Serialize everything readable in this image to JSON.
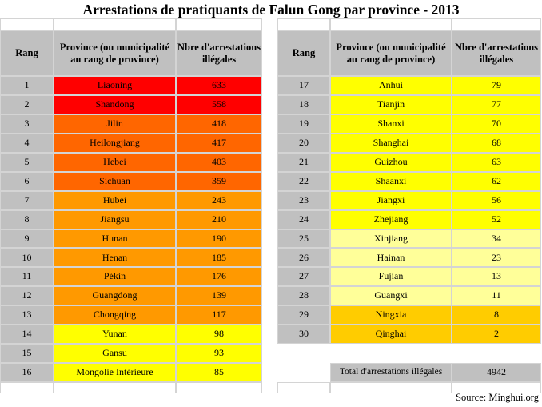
{
  "title": "Arrestations de pratiquants de Falun Gong par province - 2013",
  "headers": {
    "rank": "Rang",
    "province": "Province (ou municipalité au rang de province)",
    "count": "Nbre d'arrestations illégales"
  },
  "left_rows": [
    {
      "rank": 1,
      "province": "Liaoning",
      "count": 633,
      "color": "#ff0000"
    },
    {
      "rank": 2,
      "province": "Shandong",
      "count": 558,
      "color": "#ff0000"
    },
    {
      "rank": 3,
      "province": "Jilin",
      "count": 418,
      "color": "#ff6600"
    },
    {
      "rank": 4,
      "province": "Heilongjiang",
      "count": 417,
      "color": "#ff6600"
    },
    {
      "rank": 5,
      "province": "Hebei",
      "count": 403,
      "color": "#ff6600"
    },
    {
      "rank": 6,
      "province": "Sichuan",
      "count": 359,
      "color": "#ff6600"
    },
    {
      "rank": 7,
      "province": "Hubei",
      "count": 243,
      "color": "#ff9900"
    },
    {
      "rank": 8,
      "province": "Jiangsu",
      "count": 210,
      "color": "#ff9900"
    },
    {
      "rank": 9,
      "province": "Hunan",
      "count": 190,
      "color": "#ff9900"
    },
    {
      "rank": 10,
      "province": "Henan",
      "count": 185,
      "color": "#ff9900"
    },
    {
      "rank": 11,
      "province": "Pékin",
      "count": 176,
      "color": "#ff9900"
    },
    {
      "rank": 12,
      "province": "Guangdong",
      "count": 139,
      "color": "#ff9900"
    },
    {
      "rank": 13,
      "province": "Chongqing",
      "count": 117,
      "color": "#ff9900"
    },
    {
      "rank": 14,
      "province": "Yunan",
      "count": 98,
      "color": "#ffff00"
    },
    {
      "rank": 15,
      "province": "Gansu",
      "count": 93,
      "color": "#ffff00"
    },
    {
      "rank": 16,
      "province": "Mongolie Intérieure",
      "count": 85,
      "color": "#ffff00"
    }
  ],
  "right_rows": [
    {
      "rank": 17,
      "province": "Anhui",
      "count": 79,
      "color": "#ffff00"
    },
    {
      "rank": 18,
      "province": "Tianjin",
      "count": 77,
      "color": "#ffff00"
    },
    {
      "rank": 19,
      "province": "Shanxi",
      "count": 70,
      "color": "#ffff00"
    },
    {
      "rank": 20,
      "province": "Shanghai",
      "count": 68,
      "color": "#ffff00"
    },
    {
      "rank": 21,
      "province": "Guizhou",
      "count": 63,
      "color": "#ffff00"
    },
    {
      "rank": 22,
      "province": "Shaanxi",
      "count": 62,
      "color": "#ffff00"
    },
    {
      "rank": 23,
      "province": "Jiangxi",
      "count": 56,
      "color": "#ffff00"
    },
    {
      "rank": 24,
      "province": "Zhejiang",
      "count": 52,
      "color": "#ffff00"
    },
    {
      "rank": 25,
      "province": "Xinjiang",
      "count": 34,
      "color": "#ffff99"
    },
    {
      "rank": 26,
      "province": "Hainan",
      "count": 23,
      "color": "#ffff99"
    },
    {
      "rank": 27,
      "province": "Fujian",
      "count": 13,
      "color": "#ffff99"
    },
    {
      "rank": 28,
      "province": "Guangxi",
      "count": 11,
      "color": "#ffff99"
    },
    {
      "rank": 29,
      "province": "Ningxia",
      "count": 8,
      "color": "#ffcc00"
    },
    {
      "rank": 30,
      "province": "Qinghai",
      "count": 2,
      "color": "#ffcc00"
    }
  ],
  "total": {
    "label": "Total d'arrestations illégales",
    "value": 4942
  },
  "source": "Source: Minghui.org"
}
